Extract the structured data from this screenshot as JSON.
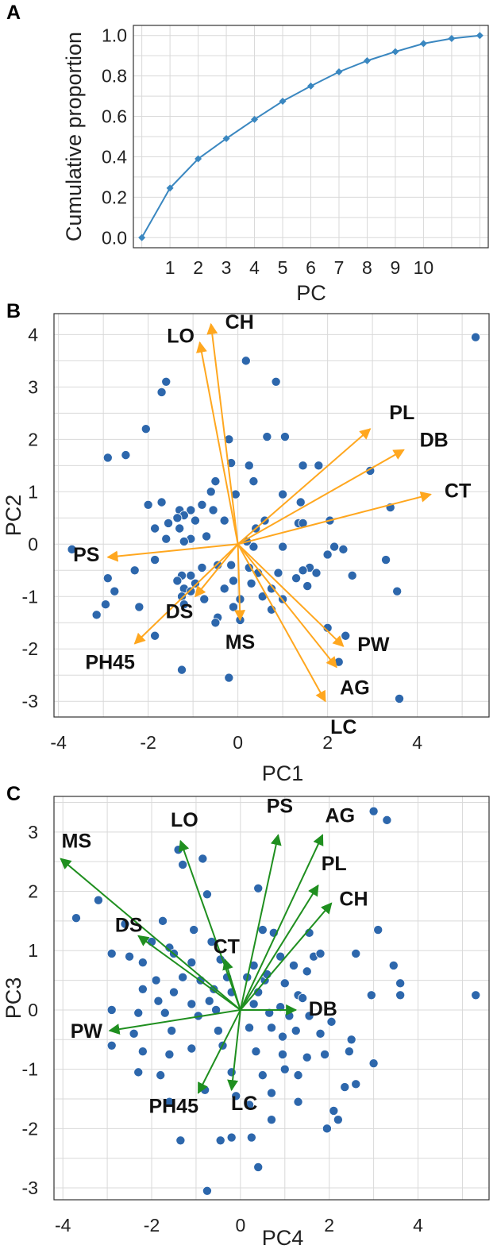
{
  "chart_data": [
    {
      "type": "line",
      "panel": "A",
      "xlabel": "PC",
      "ylabel": "Cumulative proportion",
      "x": [
        0,
        1,
        2,
        3,
        4,
        5,
        6,
        7,
        8,
        9,
        10,
        11,
        12
      ],
      "y": [
        0.0,
        0.245,
        0.39,
        0.49,
        0.585,
        0.675,
        0.75,
        0.82,
        0.875,
        0.92,
        0.96,
        0.985,
        1.0
      ],
      "xticks": [
        "1",
        "2",
        "3",
        "4",
        "5",
        "6",
        "7",
        "8",
        "9",
        "10"
      ],
      "ylim": [
        -0.05,
        1.05
      ],
      "yticks": [
        "0.0",
        "0.2",
        "0.4",
        "0.6",
        "0.8",
        "1.0"
      ],
      "grid": true,
      "color": "#3a87c0"
    },
    {
      "type": "scatter",
      "panel": "B",
      "xlabel": "PC1",
      "ylabel": "PC2",
      "xlim": [
        -4.1,
        5.6
      ],
      "ylim": [
        -3.3,
        4.4
      ],
      "xticks": [
        "-4",
        "-2",
        "0",
        "2",
        "4"
      ],
      "yticks": [
        "4",
        "3",
        "2",
        "1",
        "0",
        "-1",
        "-2",
        "-3"
      ],
      "grid": true,
      "point_color": "#2d67ac",
      "arrow_color": "#ffa71f",
      "points": [
        [
          5.3,
          3.95
        ],
        [
          0.18,
          3.5
        ],
        [
          0.85,
          3.1
        ],
        [
          -1.6,
          3.1
        ],
        [
          -1.7,
          2.9
        ],
        [
          -2.05,
          2.2
        ],
        [
          -2.5,
          1.7
        ],
        [
          -2.9,
          1.65
        ],
        [
          -0.2,
          2.0
        ],
        [
          0.65,
          2.05
        ],
        [
          1.05,
          2.05
        ],
        [
          -0.15,
          1.55
        ],
        [
          0.25,
          1.5
        ],
        [
          1.45,
          1.5
        ],
        [
          1.8,
          1.5
        ],
        [
          2.95,
          1.4
        ],
        [
          0.35,
          1.2
        ],
        [
          -0.5,
          1.2
        ],
        [
          -0.6,
          1.0
        ],
        [
          -0.05,
          0.95
        ],
        [
          1.0,
          0.95
        ],
        [
          1.4,
          0.8
        ],
        [
          -1.7,
          0.8
        ],
        [
          -2.0,
          0.75
        ],
        [
          -0.8,
          0.75
        ],
        [
          -1.05,
          0.65
        ],
        [
          -0.55,
          0.65
        ],
        [
          -1.3,
          0.65
        ],
        [
          -1.2,
          0.55
        ],
        [
          -1.35,
          0.5
        ],
        [
          -0.95,
          0.45
        ],
        [
          -0.3,
          0.45
        ],
        [
          -1.55,
          0.4
        ],
        [
          0.6,
          0.45
        ],
        [
          1.35,
          0.4
        ],
        [
          1.45,
          0.4
        ],
        [
          2.05,
          0.45
        ],
        [
          -1.85,
          0.3
        ],
        [
          -1.3,
          0.3
        ],
        [
          0.4,
          0.3
        ],
        [
          -0.7,
          0.15
        ],
        [
          -1.05,
          0.1
        ],
        [
          0.35,
          -0.05
        ],
        [
          0.2,
          0.05
        ],
        [
          -1.6,
          0.1
        ],
        [
          -1.2,
          0.05
        ],
        [
          3.4,
          0.7
        ],
        [
          3.55,
          -0.9
        ],
        [
          3.3,
          -0.3
        ],
        [
          2.15,
          -0.05
        ],
        [
          2.55,
          -0.6
        ],
        [
          2.35,
          -0.1
        ],
        [
          1.0,
          -0.05
        ],
        [
          1.6,
          -0.45
        ],
        [
          2.0,
          -0.2
        ],
        [
          1.3,
          -0.65
        ],
        [
          1.45,
          -0.5
        ],
        [
          1.75,
          -0.55
        ],
        [
          1.55,
          -0.8
        ],
        [
          -3.7,
          -0.1
        ],
        [
          -2.9,
          -0.65
        ],
        [
          -2.75,
          -0.9
        ],
        [
          -3.15,
          -1.35
        ],
        [
          -2.95,
          -1.15
        ],
        [
          -2.3,
          -0.5
        ],
        [
          -1.85,
          -0.3
        ],
        [
          -1.25,
          -0.6
        ],
        [
          -1.05,
          -0.6
        ],
        [
          -1.35,
          -0.7
        ],
        [
          -0.95,
          -0.75
        ],
        [
          -1.2,
          -0.85
        ],
        [
          -1.25,
          -1.0
        ],
        [
          -1.2,
          -1.15
        ],
        [
          -1.05,
          -0.9
        ],
        [
          -0.75,
          -1.05
        ],
        [
          -0.45,
          -1.4
        ],
        [
          -0.1,
          -1.2
        ],
        [
          0.05,
          -1.45
        ],
        [
          0.05,
          -1.05
        ],
        [
          0.25,
          -0.45
        ],
        [
          0.45,
          -0.55
        ],
        [
          0.3,
          -0.75
        ],
        [
          0.55,
          -1.0
        ],
        [
          0.75,
          -0.85
        ],
        [
          0.75,
          -1.25
        ],
        [
          1.0,
          -1.05
        ],
        [
          0.9,
          -0.55
        ],
        [
          -0.1,
          -0.7
        ],
        [
          -0.3,
          -0.85
        ],
        [
          -0.15,
          -0.4
        ],
        [
          -0.45,
          -0.4
        ],
        [
          -0.8,
          -0.45
        ],
        [
          -2.2,
          -1.2
        ],
        [
          -1.85,
          -1.75
        ],
        [
          -1.25,
          -2.4
        ],
        [
          -0.2,
          -2.55
        ],
        [
          2.4,
          -1.75
        ],
        [
          2.25,
          -2.25
        ],
        [
          3.6,
          -2.95
        ],
        [
          2.0,
          -1.6
        ],
        [
          -0.5,
          -1.5
        ]
      ],
      "vectors": [
        {
          "label": "LO",
          "x": -0.85,
          "y": 3.85
        },
        {
          "label": "CH",
          "x": -0.6,
          "y": 4.2
        },
        {
          "label": "PL",
          "x": 2.95,
          "y": 2.2
        },
        {
          "label": "DB",
          "x": 3.7,
          "y": 1.8
        },
        {
          "label": "CT",
          "x": 4.3,
          "y": 0.95
        },
        {
          "label": "PS",
          "x": -2.9,
          "y": -0.25
        },
        {
          "label": "DS",
          "x": -0.95,
          "y": -1.0
        },
        {
          "label": "MS",
          "x": 0.05,
          "y": -1.45
        },
        {
          "label": "PH45",
          "x": -2.3,
          "y": -1.9
        },
        {
          "label": "PW",
          "x": 2.35,
          "y": -1.95
        },
        {
          "label": "AG",
          "x": 2.2,
          "y": -2.35
        },
        {
          "label": "LC",
          "x": 1.95,
          "y": -3.0
        }
      ]
    },
    {
      "type": "scatter",
      "panel": "C",
      "xlabel": "PC4",
      "ylabel": "PC3",
      "xlim": [
        -4.2,
        5.6
      ],
      "ylim": [
        -3.2,
        3.6
      ],
      "xticks": [
        "-4",
        "-2",
        "0",
        "2",
        "4"
      ],
      "yticks": [
        "3",
        "2",
        "1",
        "0",
        "-1",
        "-2",
        "-3"
      ],
      "grid": true,
      "point_color": "#2d67ac",
      "arrow_color": "#1f8f1f",
      "points": [
        [
          3.0,
          3.35
        ],
        [
          3.3,
          3.2
        ],
        [
          -1.4,
          2.7
        ],
        [
          -1.3,
          2.45
        ],
        [
          -0.85,
          2.55
        ],
        [
          0.4,
          2.05
        ],
        [
          -0.75,
          1.95
        ],
        [
          -3.2,
          1.85
        ],
        [
          -3.7,
          1.55
        ],
        [
          -2.6,
          1.45
        ],
        [
          -1.75,
          1.5
        ],
        [
          -1.05,
          1.35
        ],
        [
          -0.65,
          1.15
        ],
        [
          0.5,
          1.35
        ],
        [
          0.75,
          1.3
        ],
        [
          1.55,
          1.3
        ],
        [
          -2.0,
          1.15
        ],
        [
          -1.6,
          1.05
        ],
        [
          -1.5,
          0.95
        ],
        [
          -2.5,
          0.9
        ],
        [
          -2.9,
          0.95
        ],
        [
          -2.2,
          0.8
        ],
        [
          -1.1,
          0.8
        ],
        [
          -0.45,
          0.85
        ],
        [
          0.3,
          0.75
        ],
        [
          0.9,
          0.9
        ],
        [
          1.2,
          0.75
        ],
        [
          1.5,
          0.65
        ],
        [
          1.65,
          0.9
        ],
        [
          1.8,
          0.95
        ],
        [
          2.6,
          0.95
        ],
        [
          3.1,
          1.35
        ],
        [
          3.45,
          0.75
        ],
        [
          3.6,
          0.45
        ],
        [
          3.6,
          0.25
        ],
        [
          2.95,
          0.25
        ],
        [
          5.3,
          0.25
        ],
        [
          -1.9,
          0.5
        ],
        [
          -1.3,
          0.55
        ],
        [
          -0.9,
          0.5
        ],
        [
          -0.3,
          0.55
        ],
        [
          0.15,
          0.55
        ],
        [
          0.55,
          0.5
        ],
        [
          1.0,
          0.45
        ],
        [
          -2.2,
          0.35
        ],
        [
          -1.5,
          0.3
        ],
        [
          -0.6,
          0.35
        ],
        [
          -0.2,
          0.3
        ],
        [
          0.4,
          0.3
        ],
        [
          1.3,
          0.25
        ],
        [
          -1.85,
          0.15
        ],
        [
          -1.1,
          0.1
        ],
        [
          -0.7,
          0.15
        ],
        [
          0.3,
          0.1
        ],
        [
          0.9,
          0.05
        ],
        [
          1.4,
          0.2
        ],
        [
          -2.9,
          0.0
        ],
        [
          -2.3,
          -0.05
        ],
        [
          -1.7,
          -0.05
        ],
        [
          -0.95,
          -0.1
        ],
        [
          0.65,
          -0.05
        ],
        [
          1.1,
          -0.1
        ],
        [
          1.55,
          -0.1
        ],
        [
          2.05,
          -0.2
        ],
        [
          -2.4,
          -0.4
        ],
        [
          -1.55,
          -0.35
        ],
        [
          -0.5,
          -0.35
        ],
        [
          0.2,
          -0.3
        ],
        [
          0.7,
          -0.3
        ],
        [
          1.25,
          -0.35
        ],
        [
          1.8,
          -0.4
        ],
        [
          2.5,
          -0.5
        ],
        [
          -2.2,
          -0.7
        ],
        [
          -1.6,
          -0.75
        ],
        [
          -1.1,
          -0.65
        ],
        [
          -0.4,
          -0.6
        ],
        [
          0.35,
          -0.7
        ],
        [
          0.95,
          -0.75
        ],
        [
          1.5,
          -0.8
        ],
        [
          1.9,
          -0.75
        ],
        [
          2.45,
          -0.7
        ],
        [
          3.0,
          -0.9
        ],
        [
          -2.3,
          -1.05
        ],
        [
          -1.8,
          -1.1
        ],
        [
          -0.2,
          -1.05
        ],
        [
          0.5,
          -1.1
        ],
        [
          1.0,
          -1.0
        ],
        [
          1.3,
          -1.1
        ],
        [
          -0.8,
          -1.35
        ],
        [
          -0.1,
          -1.45
        ],
        [
          0.2,
          -1.6
        ],
        [
          0.7,
          -1.4
        ],
        [
          1.3,
          -1.55
        ],
        [
          2.35,
          -1.3
        ],
        [
          2.6,
          -1.25
        ],
        [
          2.2,
          -1.85
        ],
        [
          2.1,
          -1.7
        ],
        [
          1.95,
          -2.0
        ],
        [
          -1.6,
          -1.55
        ],
        [
          0.7,
          -1.85
        ],
        [
          -1.35,
          -2.2
        ],
        [
          -0.45,
          -2.2
        ],
        [
          -0.2,
          -2.15
        ],
        [
          0.25,
          -2.15
        ],
        [
          0.4,
          -2.65
        ],
        [
          -0.75,
          -3.05
        ],
        [
          -2.9,
          -0.6
        ],
        [
          0.6,
          0.6
        ],
        [
          -0.55,
          0.0
        ],
        [
          0.95,
          -0.45
        ]
      ],
      "vectors": [
        {
          "label": "MS",
          "x": -4.05,
          "y": 2.55
        },
        {
          "label": "LO",
          "x": -1.35,
          "y": 2.85
        },
        {
          "label": "PS",
          "x": 0.85,
          "y": 2.95
        },
        {
          "label": "AG",
          "x": 1.85,
          "y": 2.95
        },
        {
          "label": "PL",
          "x": 1.75,
          "y": 2.1
        },
        {
          "label": "CH",
          "x": 2.05,
          "y": 1.8
        },
        {
          "label": "DS",
          "x": -2.3,
          "y": 1.25
        },
        {
          "label": "CT",
          "x": -0.35,
          "y": 0.85
        },
        {
          "label": "DB",
          "x": 1.25,
          "y": 0.0
        },
        {
          "label": "PW",
          "x": -2.95,
          "y": -0.35
        },
        {
          "label": "PH45",
          "x": -0.95,
          "y": -1.4
        },
        {
          "label": "LC",
          "x": -0.2,
          "y": -1.35
        }
      ]
    }
  ],
  "text": {
    "panelA": {
      "letter": "A",
      "xlabel": "PC",
      "ylabel": "Cumulative proportion"
    },
    "panelB": {
      "letter": "B",
      "xlabel": "PC1",
      "ylabel": "PC2"
    },
    "panelC": {
      "letter": "C",
      "xlabel": "PC4",
      "ylabel": "PC3"
    }
  }
}
